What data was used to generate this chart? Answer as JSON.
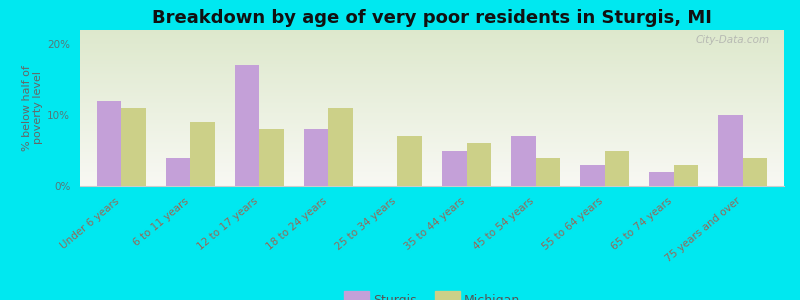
{
  "title": "Breakdown by age of very poor residents in Sturgis, MI",
  "ylabel": "% below half of\npoverty level",
  "categories": [
    "Under 6 years",
    "6 to 11 years",
    "12 to 17 years",
    "18 to 24 years",
    "25 to 34 years",
    "35 to 44 years",
    "45 to 54 years",
    "55 to 64 years",
    "65 to 74 years",
    "75 years and over"
  ],
  "sturgis_values": [
    12.0,
    4.0,
    17.0,
    8.0,
    0.0,
    5.0,
    7.0,
    3.0,
    2.0,
    10.0
  ],
  "michigan_values": [
    11.0,
    9.0,
    8.0,
    11.0,
    7.0,
    6.0,
    4.0,
    5.0,
    3.0,
    4.0
  ],
  "sturgis_color": "#c4a0d8",
  "michigan_color": "#ccd088",
  "background_outer": "#00e8f0",
  "ylim": [
    0,
    22
  ],
  "yticks": [
    0,
    10,
    20
  ],
  "ytick_labels": [
    "0%",
    "10%",
    "20%"
  ],
  "bar_width": 0.35,
  "title_fontsize": 13,
  "axis_label_fontsize": 8,
  "tick_fontsize": 7.5,
  "legend_fontsize": 9,
  "watermark": "City-Data.com"
}
